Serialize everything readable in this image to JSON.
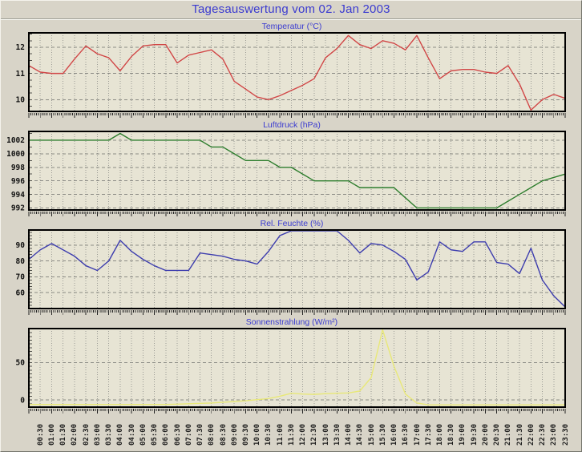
{
  "window": {
    "title": "Tagesauswertung vom 02. Jan 2003"
  },
  "colors": {
    "page_bg": "#d8d4c8",
    "plot_bg": "#e7e4d4",
    "plot_border": "#000000",
    "h_grid": "#8b8b85",
    "v_grid": "#9a9a94",
    "tick": "#222222",
    "axis_label": "#111111",
    "title_blue": "#3b3bd0",
    "temperature_line": "#d14747",
    "pressure_line": "#2d7d2d",
    "humidity_line": "#3d3dae",
    "solar_line": "#e8e878"
  },
  "x_labels": [
    "00:30",
    "01:00",
    "01:30",
    "02:00",
    "02:30",
    "03:00",
    "03:30",
    "04:00",
    "04:30",
    "05:00",
    "05:30",
    "06:00",
    "06:30",
    "07:00",
    "07:30",
    "08:00",
    "08:30",
    "09:00",
    "09:30",
    "10:00",
    "10:30",
    "11:00",
    "11:30",
    "12:00",
    "12:30",
    "13:00",
    "13:30",
    "14:00",
    "14:30",
    "15:00",
    "15:30",
    "16:00",
    "16:30",
    "17:00",
    "17:30",
    "18:00",
    "18:30",
    "19:00",
    "19:30",
    "20:00",
    "20:30",
    "21:00",
    "21:30",
    "22:00",
    "22:30",
    "23:00",
    "23:30"
  ],
  "chart_data": [
    {
      "type": "line",
      "title": "Temperatur (°C)",
      "color": "#d14747",
      "x_start": "00:00",
      "x_step_minutes": 30,
      "ylim": [
        9.55,
        12.55
      ],
      "yticks": [
        10,
        11,
        12
      ],
      "y_minor_step": 0.25,
      "grid": true,
      "values": [
        11.3,
        11.05,
        11.0,
        11.0,
        11.55,
        12.05,
        11.75,
        11.6,
        11.1,
        11.65,
        12.05,
        12.1,
        12.1,
        11.4,
        11.7,
        11.8,
        11.9,
        11.55,
        10.7,
        10.4,
        10.1,
        10.0,
        10.15,
        10.35,
        10.55,
        10.8,
        11.6,
        11.95,
        12.45,
        12.1,
        11.95,
        12.25,
        12.15,
        11.9,
        12.45,
        11.6,
        10.8,
        11.1,
        11.15,
        11.15,
        11.05,
        11.0,
        11.3,
        10.6,
        9.6,
        10.0,
        10.2,
        10.05
      ]
    },
    {
      "type": "line",
      "title": "Luftdruck (hPa)",
      "color": "#2d7d2d",
      "x_start": "00:00",
      "x_step_minutes": 30,
      "ylim": [
        991.7,
        1003.3
      ],
      "yticks": [
        992,
        994,
        996,
        998,
        1000,
        1002
      ],
      "y_minor_step": 1,
      "grid": true,
      "values": [
        1002,
        1002,
        1002,
        1002,
        1002,
        1002,
        1002,
        1002,
        1003,
        1002,
        1002,
        1002,
        1002,
        1002,
        1002,
        1002,
        1001,
        1001,
        1000,
        999,
        999,
        999,
        998,
        998,
        997,
        996,
        996,
        996,
        996,
        995,
        995,
        995,
        995,
        993.5,
        992,
        992,
        992,
        992,
        992,
        992,
        992,
        992,
        993,
        994,
        995,
        996,
        996.5,
        997
      ]
    },
    {
      "type": "line",
      "title": "Rel. Feuchte (%)",
      "color": "#3d3dae",
      "x_start": "00:00",
      "x_step_minutes": 30,
      "ylim": [
        50,
        99.5
      ],
      "yticks": [
        60,
        70,
        80,
        90
      ],
      "y_minor_step": 2,
      "grid": true,
      "values": [
        81,
        87,
        91,
        87,
        83,
        77,
        74,
        80,
        93,
        86,
        81,
        77,
        74,
        74,
        74,
        85,
        84,
        83,
        81,
        80,
        78,
        86,
        96,
        99,
        99,
        99,
        99,
        99,
        93,
        85,
        91,
        90,
        86,
        81,
        68,
        73,
        92,
        87,
        86,
        92,
        92,
        79,
        78,
        72,
        88,
        68,
        58,
        51
      ]
    },
    {
      "type": "line",
      "title": "Sonnenstrahlung (W/m²)",
      "color": "#e8e878",
      "x_start": "00:00",
      "x_step_minutes": 30,
      "ylim": [
        -9.5,
        95.5
      ],
      "yticks": [
        0,
        50
      ],
      "y_minor_step": 5,
      "grid": true,
      "values": [
        -6,
        -6,
        -6,
        -6,
        -6,
        -6,
        -6,
        -6,
        -6,
        -6,
        -6,
        -6,
        -6,
        -5.5,
        -5,
        -4.5,
        -4,
        -3,
        -2,
        -1,
        0.5,
        2,
        5,
        9,
        8,
        7.5,
        8.5,
        9,
        9.5,
        12,
        30,
        94,
        45,
        8,
        -4,
        -6.5,
        -6.5,
        -6.5,
        -6.5,
        -6.5,
        -6.5,
        -6.5,
        -6.5,
        -6.5,
        -6.5,
        -6.5,
        -6.5,
        -6.5
      ]
    }
  ]
}
